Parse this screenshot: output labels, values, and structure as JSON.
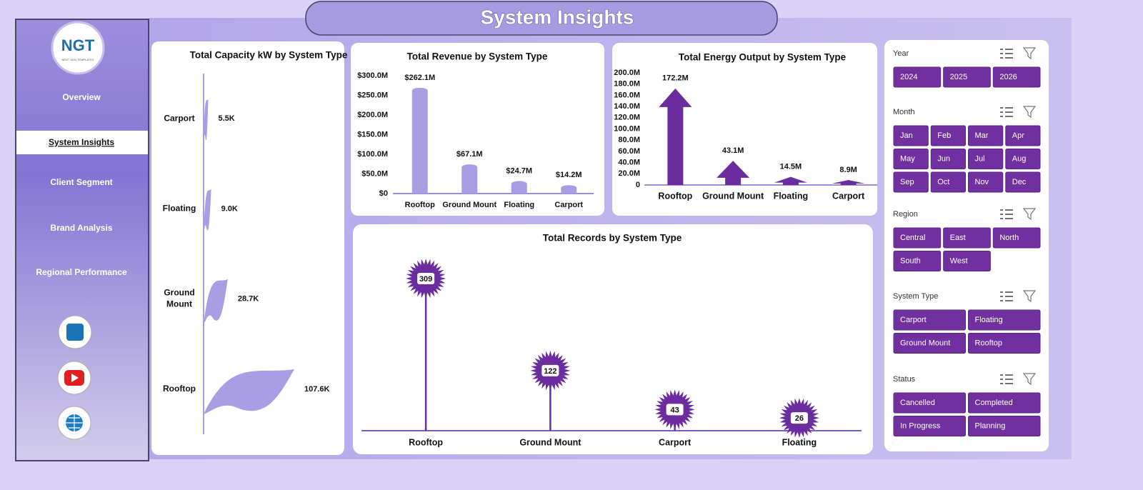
{
  "header": {
    "title": "System Insights"
  },
  "logo": {
    "text": "NGT",
    "tagline": "NEXT GEN TEMPLATES"
  },
  "nav": [
    "Overview",
    "System Insights",
    "Client Segment",
    "Brand Analysis",
    "Regional Performance"
  ],
  "nav_active": 1,
  "chart_data": [
    {
      "type": "bar",
      "orientation": "horizontal",
      "title": "Total Capacity  kW by System Type",
      "categories": [
        "Carport",
        "Floating",
        "Ground Mount",
        "Rooftop"
      ],
      "values": [
        5500,
        9000,
        28700,
        107600
      ],
      "value_labels": [
        "5.5K",
        "9.0K",
        "28.7K",
        "107.6K"
      ],
      "color": "#a99de3"
    },
    {
      "type": "bar",
      "title": "Total Revenue by System Type",
      "categories": [
        "Rooftop",
        "Ground Mount",
        "Floating",
        "Carport"
      ],
      "values": [
        262100000,
        67100000,
        24700000,
        14200000
      ],
      "value_labels": [
        "$262.1M",
        "$67.1M",
        "$24.7M",
        "$14.2M"
      ],
      "ylim": [
        0,
        300000000
      ],
      "yticks": [
        {
          "value": 0,
          "label": "$0"
        },
        {
          "value": 50000000,
          "label": "$50.0M"
        },
        {
          "value": 100000000,
          "label": "$100.0M"
        },
        {
          "value": 150000000,
          "label": "$150.0M"
        },
        {
          "value": 200000000,
          "label": "$200.0M"
        },
        {
          "value": 250000000,
          "label": "$250.0M"
        },
        {
          "value": 300000000,
          "label": "$300.0M"
        }
      ],
      "color": "#a99de3"
    },
    {
      "type": "arrow",
      "title": "Total Energy Output by System Type",
      "categories": [
        "Rooftop",
        "Ground Mount",
        "Floating",
        "Carport"
      ],
      "values": [
        172200000,
        43100000,
        14500000,
        8900000
      ],
      "value_labels": [
        "172.2M",
        "43.1M",
        "14.5M",
        "8.9M"
      ],
      "ylim": [
        0,
        200000000
      ],
      "yticks": [
        0,
        {
          "value": 20000000,
          "label": "20.0M"
        },
        {
          "value": 40000000,
          "label": "40.0M"
        },
        {
          "value": 60000000,
          "label": "60.0M"
        },
        {
          "value": 80000000,
          "label": "80.0M"
        },
        {
          "value": 100000000,
          "label": "100.0M"
        },
        {
          "value": 120000000,
          "label": "120.0M"
        },
        {
          "value": 140000000,
          "label": "140.0M"
        },
        {
          "value": 160000000,
          "label": "160.0M"
        },
        {
          "value": 180000000,
          "label": "180.0M"
        },
        {
          "value": 200000000,
          "label": "200.0M"
        }
      ],
      "color": "#6a2c9e"
    },
    {
      "type": "lollipop",
      "title": "Total Records by System Type",
      "categories": [
        "Rooftop",
        "Ground Mount",
        "Carport",
        "Floating"
      ],
      "values": [
        309,
        122,
        43,
        26
      ],
      "color": "#6a2c9e"
    }
  ],
  "slicers": [
    {
      "title": "Year",
      "options": [
        "2024",
        "2025",
        "2026"
      ]
    },
    {
      "title": "Month",
      "options": [
        "Jan",
        "Feb",
        "Mar",
        "Apr",
        "May",
        "Jun",
        "Jul",
        "Aug",
        "Sep",
        "Oct",
        "Nov",
        "Dec"
      ]
    },
    {
      "title": "Region",
      "options": [
        "Central",
        "East",
        "North",
        "South",
        "West"
      ]
    },
    {
      "title": "System Type",
      "options": [
        "Carport",
        "Floating",
        "Ground Mount",
        "Rooftop"
      ]
    },
    {
      "title": "Status",
      "options": [
        "Cancelled",
        "Completed",
        "In Progress",
        "Planning"
      ]
    }
  ]
}
